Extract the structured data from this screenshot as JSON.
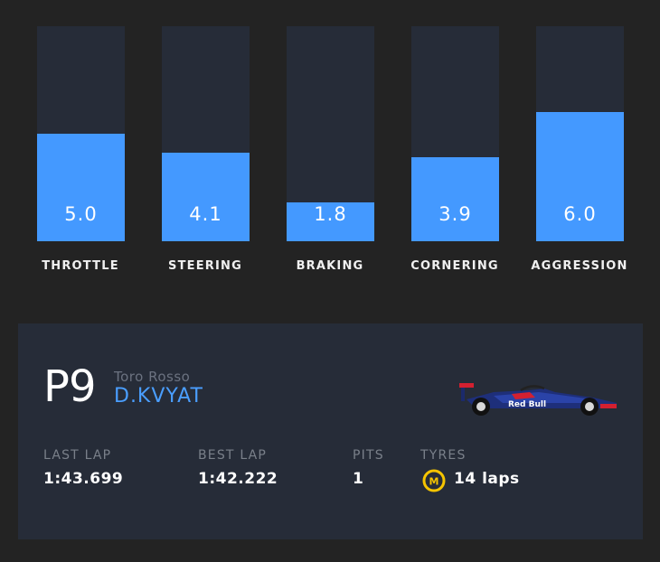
{
  "meters": [
    {
      "label": "THROTTLE",
      "value": "5.0",
      "level": 0.5
    },
    {
      "label": "STEERING",
      "value": "4.1",
      "level": 0.41
    },
    {
      "label": "BRAKING",
      "value": "1.8",
      "level": 0.18
    },
    {
      "label": "CORNERING",
      "value": "3.9",
      "level": 0.39
    },
    {
      "label": "AGGRESSION",
      "value": "6.0",
      "level": 0.6
    }
  ],
  "driver_card": {
    "position": "P9",
    "team": "Toro Rosso",
    "driver": "D.KVYAT",
    "car_icon": "toro-rosso-car",
    "stats": {
      "last_lap_label": "LAST LAP",
      "last_lap": "1:43.699",
      "best_lap_label": "BEST LAP",
      "best_lap": "1:42.222",
      "pits_label": "PITS",
      "pits": "1",
      "tyres_label": "TYRES",
      "tyre_compound": "M",
      "tyre_laps": "14 laps"
    }
  },
  "colors": {
    "background": "#232323",
    "panel": "#262c38",
    "accent": "#4499ff",
    "driver_name": "#4a9eff",
    "medium_tyre": "#f5c400"
  }
}
